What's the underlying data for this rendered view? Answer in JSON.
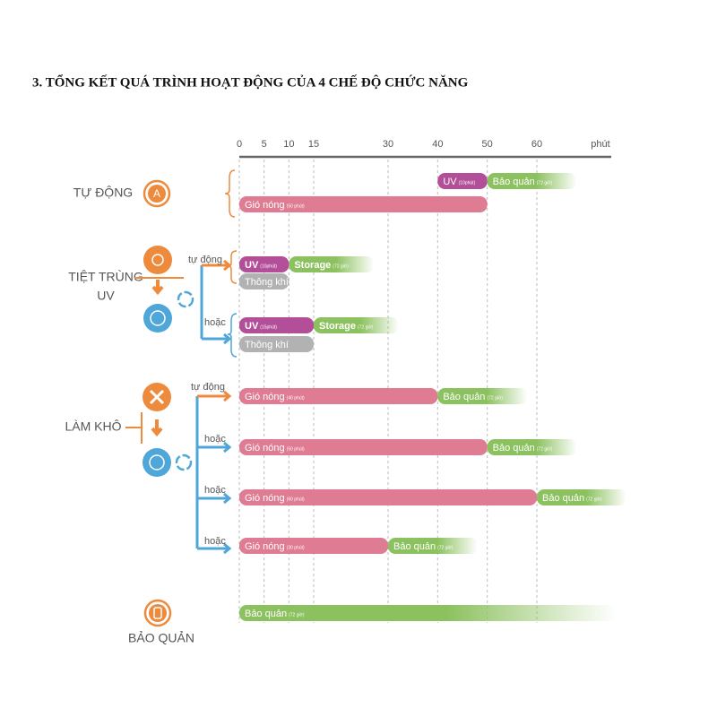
{
  "title": "3. TỔNG KẾT QUÁ TRÌNH HOẠT ĐỘNG CỦA 4 CHẾ ĐỘ CHỨC NĂNG",
  "axis": {
    "ticks": [
      0,
      5,
      10,
      15,
      30,
      40,
      50,
      60
    ],
    "unit": "phút",
    "lim": [
      0,
      75
    ]
  },
  "colors": {
    "uv": "#b34f98",
    "store": "#8cc15f",
    "heat": "#df7b92",
    "vent": "#b2b2b2"
  },
  "groups": [
    {
      "label": "TỰ ĐỘNG",
      "icon_letter": "A"
    },
    {
      "label": [
        "TIỆT TRÙNG",
        "UV"
      ]
    },
    {
      "label": "LÀM KHÔ"
    },
    {
      "label": "BẢO QUẢN"
    }
  ],
  "branches": [
    "tự động",
    "hoặc",
    "tự động",
    "hoặc",
    "hoặc",
    "hoặc"
  ],
  "rows": [
    {
      "bars": [
        {
          "kind": "uv",
          "label": "UV",
          "note": "(10phút)",
          "start": 40,
          "end": 50
        },
        {
          "kind": "store",
          "label": "Bảo quản",
          "note": "(72 giờ)",
          "start": 50
        }
      ]
    },
    {
      "bars": [
        {
          "kind": "heat",
          "label": "Gió nóng",
          "note": "(50 phút)",
          "start": 0,
          "end": 50
        }
      ]
    },
    {
      "bars": [
        {
          "kind": "uv",
          "label": "UV",
          "note": "(10phút)",
          "start": 0,
          "end": 10
        },
        {
          "kind": "store",
          "label": "Storage",
          "note": "(72 giờ)",
          "start": 10
        }
      ]
    },
    {
      "bars": [
        {
          "kind": "vent",
          "label": "Thông khí",
          "start": 0,
          "end": 10
        }
      ]
    },
    {
      "bars": [
        {
          "kind": "uv",
          "label": "UV",
          "note": "(15phút)",
          "start": 0,
          "end": 15
        },
        {
          "kind": "store",
          "label": "Storage",
          "note": "(72 giờ)",
          "start": 15
        }
      ]
    },
    {
      "bars": [
        {
          "kind": "vent",
          "label": "Thông khí",
          "start": 0,
          "end": 15
        }
      ]
    },
    {
      "bars": [
        {
          "kind": "heat",
          "label": "Gió nóng",
          "note": "(40 phút)",
          "start": 0,
          "end": 40
        },
        {
          "kind": "store",
          "label": "Bảo quản",
          "note": "(72 giờ)",
          "start": 40
        }
      ]
    },
    {
      "bars": [
        {
          "kind": "heat",
          "label": "Gió nóng",
          "note": "(50 phút)",
          "start": 0,
          "end": 50
        },
        {
          "kind": "store",
          "label": "Bảo quản",
          "note": "(72 giờ)",
          "start": 50
        }
      ]
    },
    {
      "bars": [
        {
          "kind": "heat",
          "label": "Gió nóng",
          "note": "(60 phút)",
          "start": 0,
          "end": 60
        },
        {
          "kind": "store",
          "label": "Bảo quản",
          "note": "(72 giờ)",
          "start": 60
        }
      ]
    },
    {
      "bars": [
        {
          "kind": "heat",
          "label": "Gió nóng",
          "note": "(30 phút)",
          "start": 0,
          "end": 30
        },
        {
          "kind": "store",
          "label": "Bảo quản",
          "note": "(72 giờ)",
          "start": 30
        }
      ]
    },
    {
      "bars": [
        {
          "kind": "store",
          "label": "Bảo quản",
          "note": "(72 giờ)",
          "start": 0
        }
      ]
    }
  ]
}
